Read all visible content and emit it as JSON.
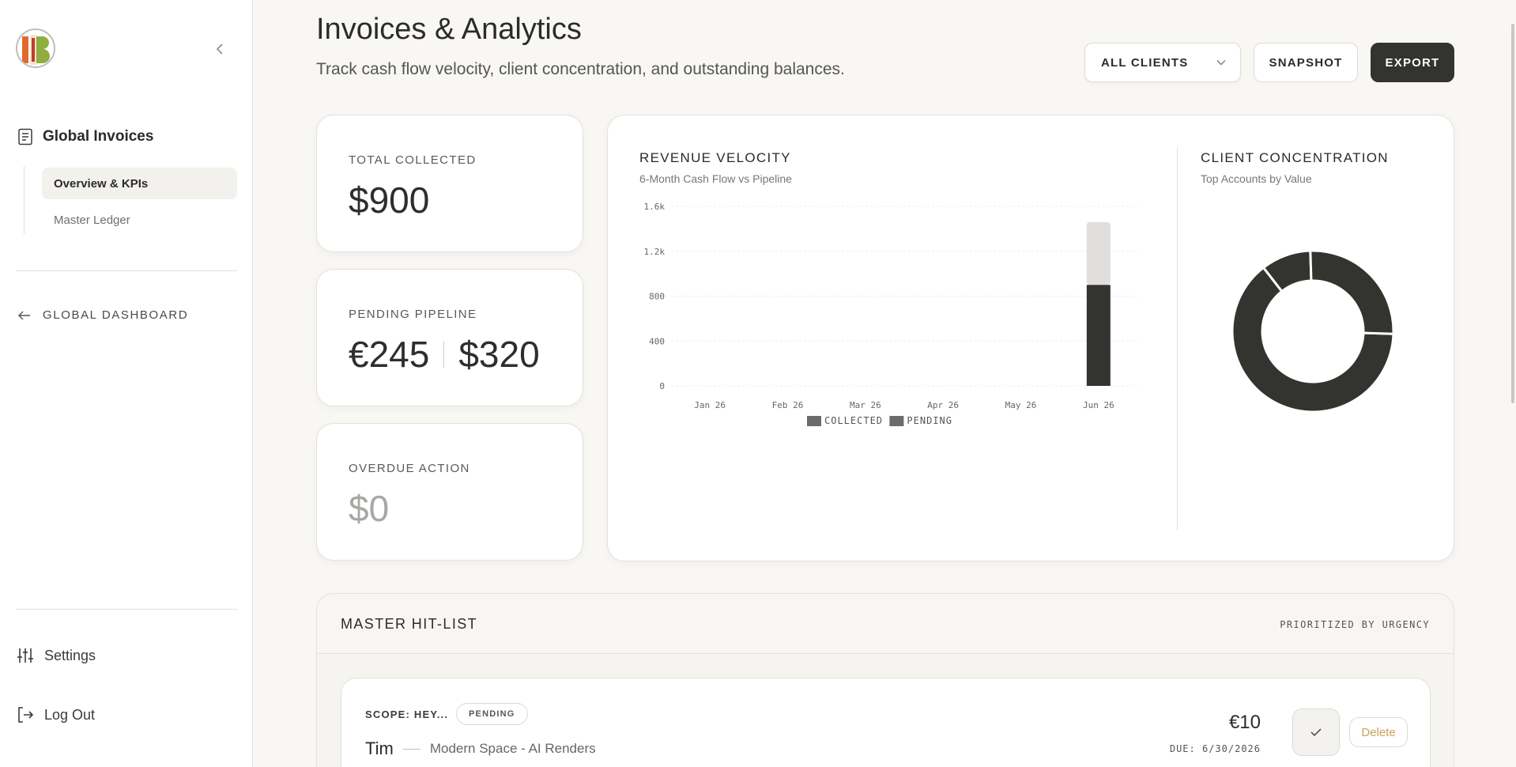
{
  "sidebar": {
    "section_title": "Global Invoices",
    "items": [
      {
        "label": "Overview & KPIs",
        "active": true
      },
      {
        "label": "Master Ledger",
        "active": false
      }
    ],
    "back_link": "GLOBAL DASHBOARD",
    "settings_label": "Settings",
    "logout_label": "Log Out"
  },
  "header": {
    "title": "Invoices & Analytics",
    "subtitle": "Track cash flow velocity, client concentration, and outstanding balances.",
    "client_select": "ALL CLIENTS",
    "snapshot_label": "SNAPSHOT",
    "export_label": "EXPORT"
  },
  "kpis": {
    "total_collected": {
      "label": "TOTAL COLLECTED",
      "value": "$900"
    },
    "pending_pipeline": {
      "label": "PENDING PIPELINE",
      "value_eur": "€245",
      "value_usd": "$320"
    },
    "overdue": {
      "label": "OVERDUE ACTION",
      "value": "$0"
    }
  },
  "revenue": {
    "title": "REVENUE VELOCITY",
    "subtitle": "6-Month Cash Flow vs Pipeline"
  },
  "concentration": {
    "title": "CLIENT CONCENTRATION",
    "subtitle": "Top Accounts by Value"
  },
  "chart_data": [
    {
      "type": "bar",
      "stacked": true,
      "categories": [
        "Jan 26",
        "Feb 26",
        "Mar 26",
        "Apr 26",
        "May 26",
        "Jun 26"
      ],
      "series": [
        {
          "name": "COLLECTED",
          "values": [
            0,
            0,
            0,
            0,
            0,
            900
          ],
          "color": "#333330"
        },
        {
          "name": "PENDING",
          "values": [
            0,
            0,
            0,
            0,
            0,
            560
          ],
          "color": "#e0dfdd"
        }
      ],
      "yticks": [
        "0",
        "400",
        "800",
        "1.2k",
        "1.6k"
      ],
      "ylim": [
        0,
        1600
      ],
      "legend": "bottom",
      "grid": true
    },
    {
      "type": "pie",
      "donut": true,
      "values": [
        64,
        10,
        26
      ],
      "color": "#333330"
    }
  ],
  "hitlist": {
    "title": "MASTER HIT-LIST",
    "meta": "PRIORITIZED BY URGENCY",
    "rows": [
      {
        "scope": "SCOPE: HEY...",
        "status": "PENDING",
        "client": "Tim",
        "project": "Modern Space - AI Renders",
        "amount": "€10",
        "due": "DUE: 6/30/2026",
        "delete_label": "Delete"
      }
    ]
  }
}
